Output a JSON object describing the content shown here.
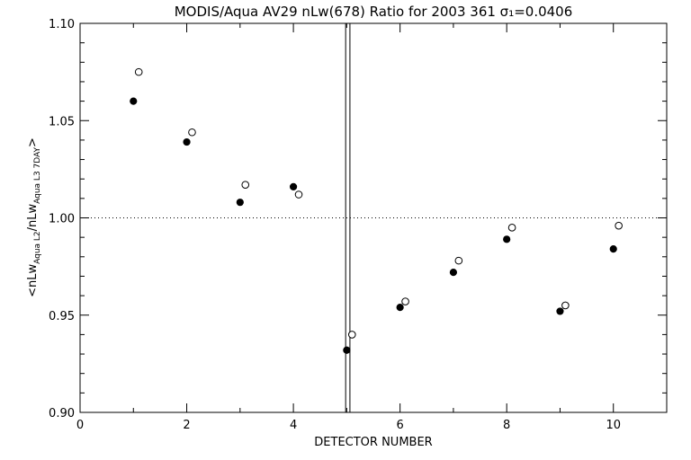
{
  "chart_data": {
    "type": "scatter",
    "title": "MODIS/Aqua AV29 nLw(678) Ratio for 2003 361 σ₁=0.0406",
    "xlabel": "DETECTOR NUMBER",
    "ylabel": "<nLw_Aqua L2 / nLw_Aqua L3 7DAY>",
    "ylabel_parts": {
      "open": "<nLw",
      "sub1": "Aqua L2",
      "mid": "/nLw",
      "sub2": "Aqua L3 7DAY",
      "close": ">"
    },
    "xlim": [
      0,
      11
    ],
    "ylim": [
      0.9,
      1.1
    ],
    "xticks": [
      "0",
      "2",
      "4",
      "6",
      "8",
      "10"
    ],
    "yticks": [
      "0.90",
      "0.95",
      "1.00",
      "1.05",
      "1.10"
    ],
    "reference_line_y": 1.0,
    "vertical_lines_x": [
      4.98,
      5.06
    ],
    "series": [
      {
        "marker": "filled-circle",
        "x": [
          1,
          2,
          3,
          4,
          5,
          6,
          7,
          8,
          9,
          10
        ],
        "y": [
          1.06,
          1.039,
          1.008,
          1.016,
          0.932,
          0.954,
          0.972,
          0.989,
          0.952,
          0.984
        ]
      },
      {
        "marker": "open-circle",
        "x": [
          1.1,
          2.1,
          3.1,
          4.1,
          5.1,
          6.1,
          7.1,
          8.1,
          9.1,
          10.1
        ],
        "y": [
          1.075,
          1.044,
          1.017,
          1.012,
          0.94,
          0.957,
          0.978,
          0.995,
          0.955,
          0.996
        ]
      }
    ],
    "grid": false
  }
}
